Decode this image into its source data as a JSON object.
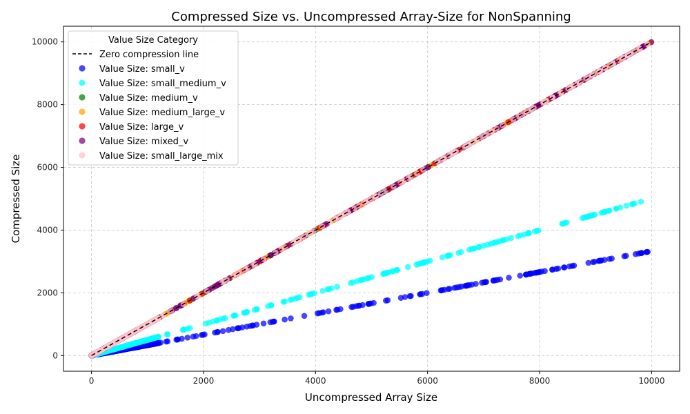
{
  "chart_data": {
    "type": "scatter",
    "title": "Compressed Size vs. Uncompressed Array-Size for NonSpanning",
    "xlabel": "Uncompressed Array Size",
    "ylabel": "Compressed Size",
    "xlim": [
      -500,
      10500
    ],
    "ylim": [
      -500,
      10500
    ],
    "xticks": [
      0,
      2000,
      4000,
      6000,
      8000,
      10000
    ],
    "yticks": [
      0,
      2000,
      4000,
      6000,
      8000,
      10000
    ],
    "grid": true,
    "legend": {
      "title": "Value Size Category",
      "placement": "top-left"
    },
    "reference_line": {
      "name": "Zero compression line",
      "x": [
        0,
        10000
      ],
      "y": [
        0,
        10000
      ],
      "color": "#000000",
      "style": "dashed"
    },
    "series": [
      {
        "name": "Value Size: small_v",
        "color": "#0000ff",
        "slope": 0.333,
        "x_range": [
          0,
          10000
        ]
      },
      {
        "name": "Value Size: small_medium_v",
        "color": "#00ffff",
        "slope": 0.5,
        "x_range": [
          0,
          10000
        ]
      },
      {
        "name": "Value Size: medium_v",
        "color": "#008000",
        "slope": 1.0,
        "x_range": [
          0,
          10000
        ]
      },
      {
        "name": "Value Size: medium_large_v",
        "color": "#ffa500",
        "slope": 1.0,
        "x_range": [
          0,
          10000
        ]
      },
      {
        "name": "Value Size: large_v",
        "color": "#ff0000",
        "slope": 1.0,
        "x_range": [
          0,
          10000
        ]
      },
      {
        "name": "Value Size: mixed_v",
        "color": "#800080",
        "slope": 1.0,
        "x_range": [
          0,
          10000
        ]
      },
      {
        "name": "Value Size: small_large_mix",
        "color": "#ffc0cb",
        "slope": 1.0,
        "x_range": [
          0,
          10000
        ]
      }
    ]
  }
}
